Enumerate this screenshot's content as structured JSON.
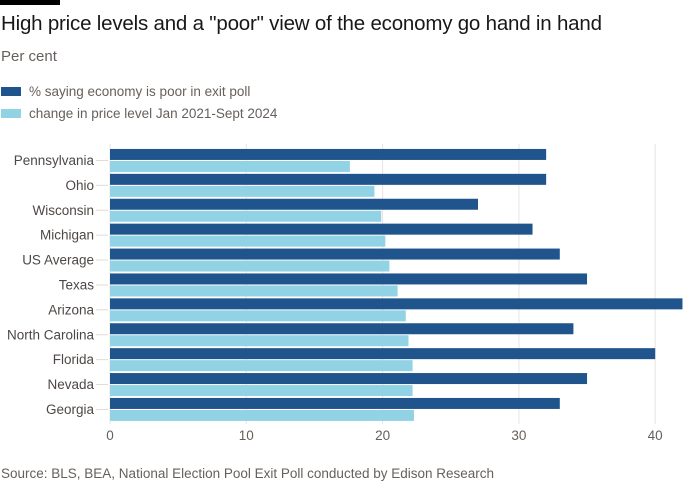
{
  "chart_data": {
    "type": "bar",
    "orientation": "horizontal",
    "title": "High price levels and a \"poor\" view of the economy go hand in hand",
    "subtitle": "Per cent",
    "categories": [
      "Pennsylvania",
      "Ohio",
      "Wisconsin",
      "Michigan",
      "US Average",
      "Texas",
      "Arizona",
      "North Carolina",
      "Florida",
      "Nevada",
      "Georgia"
    ],
    "series": [
      {
        "name": "% saying economy is poor in exit poll",
        "color": "#1f558c",
        "values": [
          32,
          32,
          27,
          31,
          33,
          35,
          42,
          34,
          40,
          35,
          33
        ]
      },
      {
        "name": "change in price level Jan 2021-Sept 2024",
        "color": "#92d2e5",
        "values": [
          17.6,
          19.4,
          19.9,
          20.2,
          20.5,
          21.1,
          21.7,
          21.9,
          22.2,
          22.2,
          22.3
        ]
      }
    ],
    "xlim": [
      0,
      42
    ],
    "xticks": [
      0,
      10,
      20,
      30,
      40
    ],
    "grid": true,
    "legend": "top-left",
    "source": "Source: BLS, BEA, National Election Pool Exit Poll conducted by Edison Research"
  }
}
